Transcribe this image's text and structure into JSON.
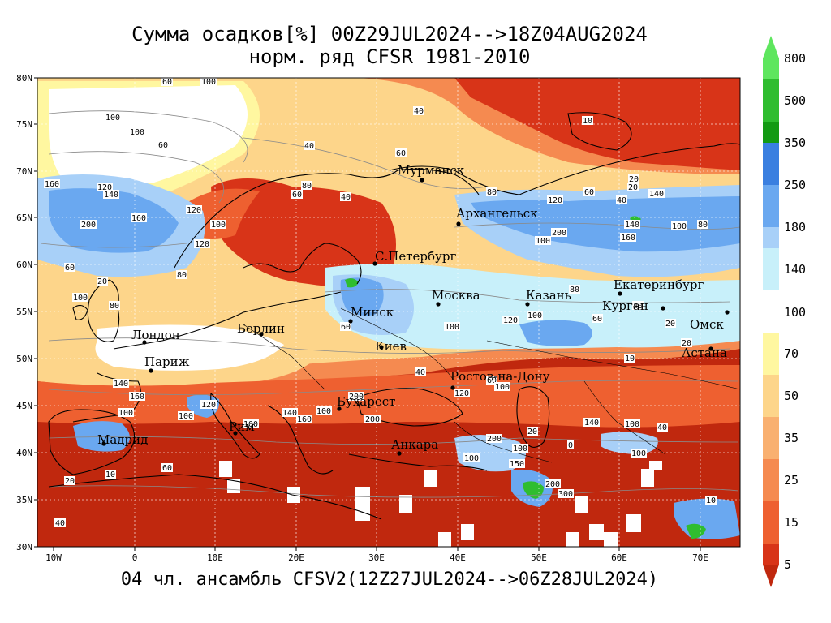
{
  "title_line1": "Сумма осадков[%] 00Z29JUL2024-->18Z04AUG2024",
  "title_line2": "норм. ряд CFSR 1981-2010",
  "footer": "04 чл. ансамбль CFSV2(12Z27JUL2024-->06Z28JUL2024)",
  "lat_ticks": [
    "80N",
    "75N",
    "70N",
    "65N",
    "60N",
    "55N",
    "50N",
    "45N",
    "40N",
    "35N",
    "30N"
  ],
  "lon_ticks": [
    "10W",
    "0",
    "10E",
    "20E",
    "30E",
    "40E",
    "50E",
    "60E",
    "70E"
  ],
  "colorbar": {
    "upper": [
      {
        "label": "800",
        "color": "#5ee65e"
      },
      {
        "label": "500",
        "color": "#2fbd2f"
      },
      {
        "label": "350",
        "color": "#139a13"
      },
      {
        "label": "250",
        "color": "#3a7fe0"
      },
      {
        "label": "180",
        "color": "#6aa8f0"
      },
      {
        "label": "140",
        "color": "#a8d0f8"
      },
      {
        "label": "100",
        "color": "#c8f0fa"
      }
    ],
    "mid_label": "100",
    "lower": [
      {
        "label": "70",
        "color": "#fff7a0"
      },
      {
        "label": "50",
        "color": "#fdd58a"
      },
      {
        "label": "35",
        "color": "#f9b070"
      },
      {
        "label": "25",
        "color": "#f58a50"
      },
      {
        "label": "15",
        "color": "#ee6030"
      },
      {
        "label": "5",
        "color": "#d83418"
      }
    ],
    "top_arrow_color": "#5ee65e",
    "bottom_arrow_color": "#c0280e"
  },
  "cities": [
    {
      "name": "Мурманск"
    },
    {
      "name": "Архангельск"
    },
    {
      "name": "С.Петербург"
    },
    {
      "name": "Москва"
    },
    {
      "name": "Казань"
    },
    {
      "name": "Екатеринбург"
    },
    {
      "name": "Курган"
    },
    {
      "name": "Омск"
    },
    {
      "name": "Астана"
    },
    {
      "name": "Минск"
    },
    {
      "name": "Киев"
    },
    {
      "name": "Берлин"
    },
    {
      "name": "Лондон"
    },
    {
      "name": "Париж"
    },
    {
      "name": "Ростов-на-Дону"
    },
    {
      "name": "Бухарест"
    },
    {
      "name": "Рим"
    },
    {
      "name": "Мадрид"
    },
    {
      "name": "Анкара"
    }
  ],
  "contour_labels": [
    "100",
    "60",
    "100",
    "60",
    "40",
    "100",
    "40",
    "60",
    "10",
    "20",
    "160",
    "120",
    "140",
    "200",
    "160",
    "120",
    "80",
    "100",
    "120",
    "40",
    "80",
    "60",
    "120",
    "80",
    "60",
    "40",
    "20",
    "140",
    "200",
    "160",
    "100",
    "80",
    "100",
    "140",
    "60",
    "20",
    "100",
    "80",
    "60",
    "100",
    "120",
    "100",
    "80",
    "60",
    "40",
    "20",
    "10",
    "40",
    "60",
    "100",
    "120",
    "200",
    "160",
    "140",
    "100",
    "100",
    "120",
    "100",
    "140",
    "160",
    "200",
    "100",
    "60",
    "10",
    "20",
    "40",
    "20",
    "0",
    "100",
    "150",
    "200",
    "300",
    "200",
    "100",
    "140",
    "100",
    "40",
    "100",
    "20",
    "10"
  ],
  "map_colors": {
    "deep_dry": "#c0280e",
    "dry": "#d83418",
    "lower_mid": "#ee6030",
    "mid": "#f58a50",
    "moderate": "#f9b070",
    "near_norm": "#fdd58a",
    "norm_light": "#fff7a0",
    "wet_light": "#c8f0fa",
    "wet": "#a8d0f8",
    "wetter": "#6aa8f0",
    "very_wet": "#3a7fe0",
    "extreme": "#2fbd2f",
    "coast": "#000000",
    "grid": "#808080"
  }
}
